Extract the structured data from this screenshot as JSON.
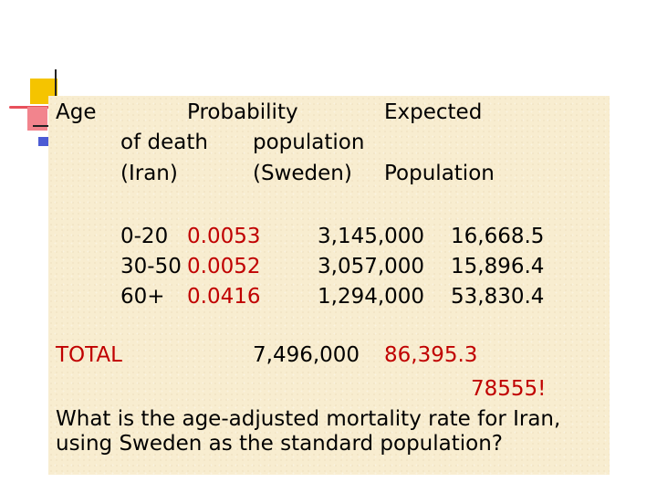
{
  "colors": {
    "panel_bg": "#f8edd0",
    "text": "#000000",
    "accent_red": "#c00000"
  },
  "header": {
    "age": "Age",
    "prob_line1": "Probability",
    "prob_line2": "of death",
    "prob_line3": "(Iran)",
    "pop_line2": "population",
    "pop_line3": "(Sweden)",
    "exp_line1": "Expected",
    "exp_line3": "Population"
  },
  "rows": [
    {
      "age": "0-20",
      "prob": "0.0053",
      "pop": "3,145,000",
      "expected": "16,668.5"
    },
    {
      "age": "30-50",
      "prob": "0.0052",
      "pop": "3,057,000",
      "expected": "15,896.4"
    },
    {
      "age": "60+",
      "prob": "0.0416",
      "pop": "1,294,000",
      "expected": "53,830.4"
    }
  ],
  "total": {
    "label": "TOTAL",
    "pop": "7,496,000",
    "expected": "86,395.3",
    "note": "78555!"
  },
  "question": {
    "line1": "What is the age-adjusted mortality rate for Iran,",
    "line2": "using Sweden as the standard population?"
  }
}
